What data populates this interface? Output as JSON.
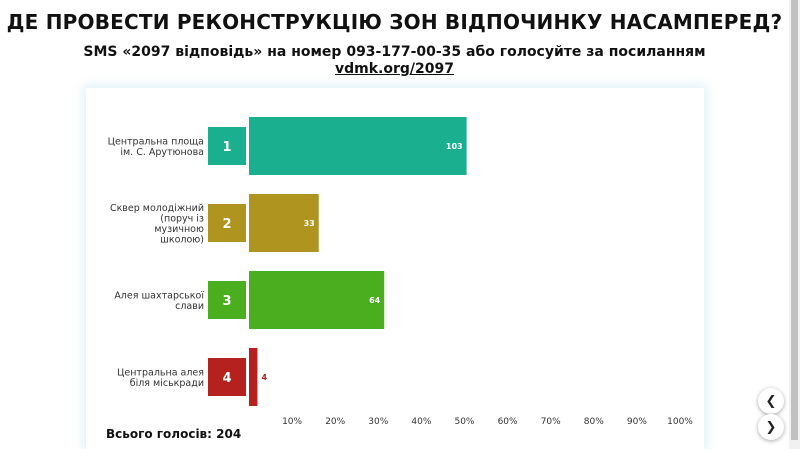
{
  "header": {
    "title": "ДЕ ПРОВЕСТИ РЕКОНСТРУКЦІЮ ЗОН ВІДПОЧИНКУ НАСАМПЕРЕД?",
    "subtitle": "SMS «2097 відповідь» на номер 093-177-00-35 або голосуйте за посиланням",
    "link": "vdmk.org/2097"
  },
  "footer": {
    "total": "Всього голосів: 204"
  },
  "nav": {
    "prev_icon": "chevron-left-icon",
    "next_icon": "chevron-right-icon"
  },
  "chart_data": {
    "type": "bar",
    "orientation": "horizontal",
    "categories": [
      [
        "Центральна площа",
        "ім. С. Арутюнова"
      ],
      [
        "Сквер молодіжний",
        "(поруч із",
        "музичною",
        "школою)"
      ],
      [
        "Алея шахтарської",
        "слави"
      ],
      [
        "Центральна алея",
        "біля міськради"
      ]
    ],
    "ranks": [
      "1",
      "2",
      "3",
      "4"
    ],
    "values": [
      103,
      33,
      64,
      4
    ],
    "colors": [
      "#1aaf8f",
      "#b09420",
      "#4aae1e",
      "#b5211f"
    ],
    "xlim": [
      0,
      100
    ],
    "xticks": [
      "10%",
      "20%",
      "30%",
      "40%",
      "50%",
      "60%",
      "70%",
      "80%",
      "90%",
      "100%"
    ],
    "total_votes": 204
  }
}
